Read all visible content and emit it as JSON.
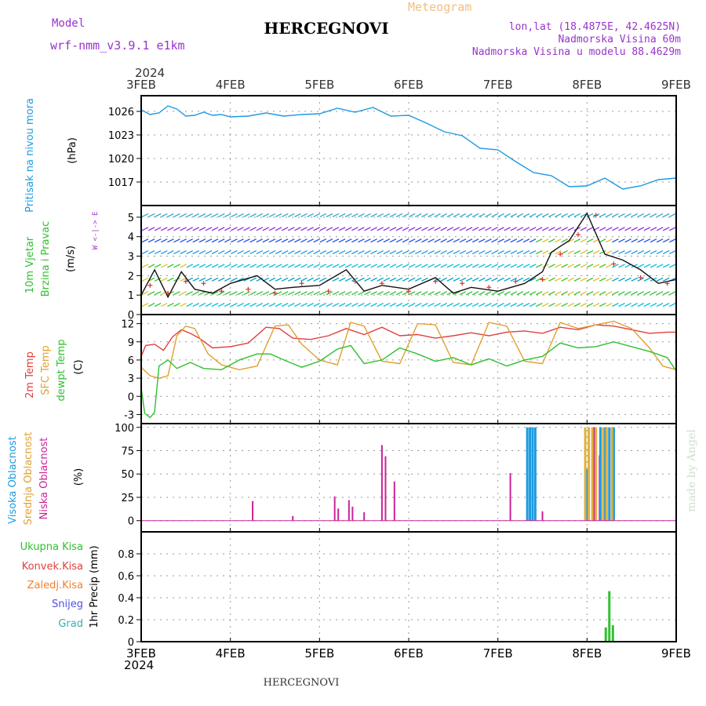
{
  "header": {
    "model_label": "Model",
    "model_name": "wrf-nmm_v3.9.1  e1km",
    "meteogram_label": "Meteogram",
    "station": "HERCEGNOVI",
    "lonlat": "lon,lat (18.4875E, 42.4625N)",
    "altitude": "Nadmorska Visina 60m",
    "model_altitude": "Nadmorska Visina u modelu 88.4629m",
    "watermark": "made by Angel",
    "footer_station": "HERCEGNOVI"
  },
  "time_axis": {
    "year_top": "2024",
    "year_bottom": "2024",
    "ticks": [
      "3FEB",
      "4FEB",
      "5FEB",
      "6FEB",
      "7FEB",
      "8FEB",
      "9FEB"
    ]
  },
  "colors": {
    "pressure": "#1e9be0",
    "wind_speed": "#111111",
    "gust": "#e03030",
    "t2m": "#e04040",
    "tsfc": "#e0a030",
    "dewpoint": "#30c030",
    "cloud_high": "#1e9be0",
    "cloud_mid": "#e0b040",
    "cloud_low": "#cc2299",
    "precip_total": "#30c030"
  },
  "chart_data": [
    {
      "type": "line",
      "panel": "pressure",
      "ylabel_lines": [
        "Pritisak na nivou mora",
        "(hPa)"
      ],
      "ylim": [
        1014,
        1028
      ],
      "yticks": [
        "1017",
        "1020",
        "1023",
        "1026"
      ],
      "grid": true,
      "series": [
        {
          "key": "mslp",
          "x": [
            0,
            0.1,
            0.2,
            0.3,
            0.4,
            0.5,
            0.6,
            0.7,
            0.8,
            0.9,
            1.0,
            1.2,
            1.4,
            1.6,
            1.8,
            2.0,
            2.2,
            2.4,
            2.6,
            2.8,
            3.0,
            3.2,
            3.4,
            3.6,
            3.8,
            4.0,
            4.2,
            4.4,
            4.6,
            4.8,
            5.0,
            5.2,
            5.4,
            5.6,
            5.8,
            6.0
          ],
          "values": [
            1026.2,
            1025.6,
            1025.8,
            1026.7,
            1026.3,
            1025.4,
            1025.5,
            1025.9,
            1025.5,
            1025.6,
            1025.3,
            1025.4,
            1025.8,
            1025.4,
            1025.6,
            1025.7,
            1026.4,
            1025.9,
            1026.5,
            1025.4,
            1025.5,
            1024.5,
            1023.4,
            1022.9,
            1021.3,
            1021.1,
            1019.6,
            1018.2,
            1017.8,
            1016.4,
            1016.5,
            1017.5,
            1016.1,
            1016.5,
            1017.3,
            1017.5
          ]
        }
      ]
    },
    {
      "type": "line",
      "panel": "wind",
      "ylabel_lines": [
        "10m Vjetar",
        "Brzina i Pravac",
        "(m/s)"
      ],
      "compass": "W <-|-> E",
      "ylim": [
        0,
        5.6
      ],
      "yticks": [
        "0",
        "1",
        "2",
        "3",
        "4",
        "5"
      ],
      "grid": true,
      "series": [
        {
          "key": "speed",
          "x": [
            0,
            0.15,
            0.3,
            0.45,
            0.6,
            0.8,
            1.0,
            1.3,
            1.5,
            1.7,
            2.0,
            2.3,
            2.5,
            2.7,
            3.0,
            3.3,
            3.5,
            3.7,
            4.0,
            4.3,
            4.5,
            4.6,
            4.7,
            4.8,
            5.0,
            5.2,
            5.4,
            5.6,
            5.8,
            6.0
          ],
          "values": [
            1.0,
            2.3,
            0.9,
            2.2,
            1.3,
            1.1,
            1.6,
            2.0,
            1.3,
            1.4,
            1.5,
            2.3,
            1.2,
            1.5,
            1.3,
            1.9,
            1.1,
            1.4,
            1.2,
            1.6,
            2.2,
            3.2,
            3.5,
            3.8,
            5.2,
            3.1,
            2.8,
            2.3,
            1.6,
            1.8
          ]
        },
        {
          "key": "gust",
          "x": [
            0.1,
            0.3,
            0.5,
            0.7,
            0.9,
            1.2,
            1.5,
            1.8,
            2.1,
            2.4,
            2.7,
            3.0,
            3.3,
            3.6,
            3.9,
            4.2,
            4.5,
            4.7,
            4.9,
            5.1,
            5.3,
            5.6,
            5.9
          ],
          "values": [
            1.5,
            1.1,
            1.7,
            1.6,
            1.2,
            1.3,
            1.1,
            1.6,
            1.2,
            1.7,
            1.6,
            1.2,
            1.7,
            1.6,
            1.4,
            1.7,
            1.8,
            3.1,
            4.1,
            5.1,
            2.6,
            1.9,
            1.6
          ]
        }
      ]
    },
    {
      "type": "line",
      "panel": "temperature",
      "ylabel_lines": [
        "2m Temp",
        "SFC Temp",
        "dewpt Temp",
        "(C)"
      ],
      "ylim": [
        -4.5,
        13.5
      ],
      "yticks": [
        "-3",
        "0",
        "3",
        "6",
        "9",
        "12"
      ],
      "grid": true,
      "series": [
        {
          "key": "t2m",
          "x": [
            0,
            0.05,
            0.15,
            0.25,
            0.35,
            0.45,
            0.55,
            0.65,
            0.8,
            1.0,
            1.2,
            1.4,
            1.55,
            1.7,
            1.9,
            2.1,
            2.3,
            2.5,
            2.7,
            2.9,
            3.1,
            3.3,
            3.5,
            3.7,
            3.9,
            4.1,
            4.3,
            4.5,
            4.7,
            4.9,
            5.1,
            5.3,
            5.5,
            5.7,
            5.9,
            6.0
          ],
          "values": [
            6.6,
            8.4,
            8.6,
            7.6,
            9.8,
            11.0,
            10.4,
            9.6,
            8.0,
            8.2,
            8.8,
            11.4,
            11.2,
            9.6,
            9.4,
            10.0,
            11.2,
            10.2,
            11.4,
            10.0,
            10.2,
            9.6,
            10.0,
            10.5,
            10.0,
            10.6,
            10.8,
            10.4,
            11.4,
            11.0,
            11.8,
            11.6,
            11.0,
            10.4,
            10.6,
            10.6
          ]
        },
        {
          "key": "tsfc",
          "x": [
            0,
            0.1,
            0.2,
            0.3,
            0.4,
            0.5,
            0.6,
            0.75,
            0.9,
            1.1,
            1.3,
            1.5,
            1.65,
            1.8,
            2.0,
            2.2,
            2.35,
            2.5,
            2.7,
            2.9,
            3.1,
            3.3,
            3.5,
            3.7,
            3.9,
            4.1,
            4.3,
            4.5,
            4.7,
            4.9,
            5.1,
            5.3,
            5.5,
            5.7,
            5.85,
            6.0
          ],
          "values": [
            4.8,
            3.4,
            3.0,
            3.4,
            10.0,
            11.6,
            11.2,
            7.0,
            5.2,
            4.4,
            5.0,
            11.6,
            11.8,
            8.6,
            6.0,
            5.2,
            12.2,
            11.6,
            5.8,
            5.4,
            12.0,
            11.8,
            5.6,
            5.2,
            12.2,
            11.6,
            5.8,
            5.4,
            12.2,
            11.2,
            11.8,
            12.4,
            11.2,
            8.0,
            5.0,
            4.4
          ]
        },
        {
          "key": "dewpt",
          "x": [
            0,
            0.04,
            0.1,
            0.15,
            0.2,
            0.3,
            0.4,
            0.55,
            0.7,
            0.9,
            1.1,
            1.3,
            1.45,
            1.6,
            1.8,
            2.0,
            2.2,
            2.35,
            2.5,
            2.7,
            2.9,
            3.1,
            3.3,
            3.5,
            3.7,
            3.9,
            4.1,
            4.3,
            4.5,
            4.7,
            4.9,
            5.1,
            5.3,
            5.5,
            5.7,
            5.9,
            6.0
          ],
          "values": [
            1.4,
            -2.8,
            -3.5,
            -2.6,
            5.0,
            6.0,
            4.6,
            5.6,
            4.6,
            4.4,
            6.0,
            7.0,
            7.0,
            6.0,
            4.8,
            5.8,
            7.8,
            8.4,
            5.4,
            6.0,
            8.0,
            7.0,
            5.8,
            6.4,
            5.2,
            6.2,
            5.0,
            6.0,
            6.6,
            8.8,
            8.0,
            8.2,
            9.0,
            8.2,
            7.4,
            6.4,
            4.2
          ]
        }
      ]
    },
    {
      "type": "bar",
      "panel": "clouds",
      "ylabel_lines": [
        "Visoka Oblacnost",
        "Srednja Oblacnost",
        "Niska Oblacnost",
        "(%)"
      ],
      "ylim": [
        -12,
        104
      ],
      "yticks": [
        "0",
        "25",
        "50",
        "75",
        "100"
      ],
      "grid": true,
      "series": [
        {
          "key": "low",
          "x": [
            1.25,
            1.7,
            2.17,
            2.21,
            2.33,
            2.37,
            2.5,
            2.7,
            2.74,
            2.84,
            4.14,
            4.5,
            5.0,
            5.08,
            5.14,
            5.2,
            5.25
          ],
          "values": [
            21,
            5,
            26,
            13,
            22,
            15,
            9,
            81,
            69,
            42,
            51,
            10,
            55,
            100,
            70,
            50,
            50
          ]
        },
        {
          "key": "high",
          "x": [
            4.33,
            4.36,
            4.39,
            4.42,
            5.0,
            5.15,
            5.2,
            5.25,
            5.3
          ],
          "values": [
            100,
            100,
            100,
            100,
            55,
            100,
            100,
            100,
            100
          ]
        },
        {
          "key": "mid",
          "x": [
            4.98,
            5.02,
            5.06,
            5.1,
            5.18,
            5.22,
            5.28
          ],
          "values": [
            100,
            100,
            100,
            100,
            100,
            100,
            100
          ]
        }
      ]
    },
    {
      "type": "bar",
      "panel": "precip",
      "ylabel_lines": [
        "1hr Precip (mm)"
      ],
      "legend": [
        "Ukupna Kisa",
        "Konvek.Kisa",
        "Zaledj.Kisa",
        "Snijeg",
        "Grad"
      ],
      "ylim": [
        0,
        1.0
      ],
      "yticks": [
        "0",
        "0.2",
        "0.4",
        "0.6",
        "0.8"
      ],
      "grid": true,
      "series": [
        {
          "key": "total",
          "x": [
            5.21,
            5.25,
            5.29
          ],
          "values": [
            0.13,
            0.46,
            0.15
          ]
        }
      ]
    }
  ]
}
